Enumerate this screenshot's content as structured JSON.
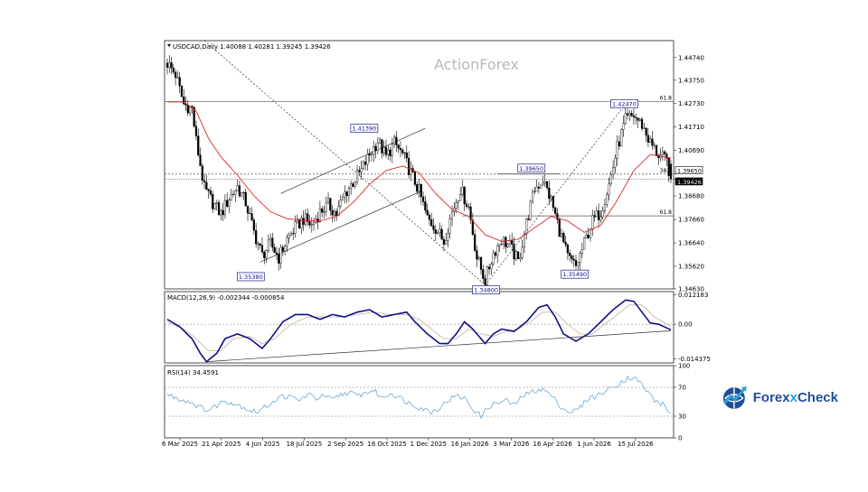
{
  "chart_data": [
    {
      "type": "candlestick",
      "panel": "price",
      "header": "USDCAD,Daily  1.40088 1.40281 1.39245 1.39426",
      "symbol": "USDCAD",
      "timeframe": "Daily",
      "ohlc_last": {
        "open": 1.40088,
        "high": 1.40281,
        "low": 1.39245,
        "close": 1.39426
      },
      "watermark": "ActionForex",
      "ylim": [
        1.3463,
        1.4548
      ],
      "yticks": [
        1.4474,
        1.4375,
        1.4273,
        1.4171,
        1.4069,
        1.3965,
        1.3942,
        1.3869,
        1.3766,
        1.3664,
        1.3562,
        1.3463
      ],
      "ytick_labels": [
        "1.44740",
        "1.43750",
        "1.42730",
        "1.41710",
        "1.40690",
        "1.39650",
        "1.39426",
        "1.38680",
        "1.37660",
        "1.36640",
        "1.35620",
        "1.34630"
      ],
      "xticks": [
        "6 Mar 2025",
        "21 Apr 2025",
        "4 Jun 2025",
        "18 Jul 2025",
        "2 Sep 2025",
        "16 Oct 2025",
        "1 Dec 2025",
        "16 Jan 2026",
        "3 Mar 2026",
        "16 Apr 2026",
        "1 Jun 2026",
        "15 Jul 2026"
      ],
      "close_path": [
        [
          0,
          1.445
        ],
        [
          4,
          1.44
        ],
        [
          8,
          1.427
        ],
        [
          12,
          1.425
        ],
        [
          14,
          1.411
        ],
        [
          18,
          1.39
        ],
        [
          22,
          1.384
        ],
        [
          26,
          1.379
        ],
        [
          30,
          1.386
        ],
        [
          34,
          1.391
        ],
        [
          38,
          1.384
        ],
        [
          42,
          1.371
        ],
        [
          46,
          1.361
        ],
        [
          50,
          1.366
        ],
        [
          54,
          1.36
        ],
        [
          58,
          1.368
        ],
        [
          62,
          1.373
        ],
        [
          66,
          1.377
        ],
        [
          70,
          1.374
        ],
        [
          74,
          1.38
        ],
        [
          78,
          1.383
        ],
        [
          82,
          1.379
        ],
        [
          86,
          1.388
        ],
        [
          90,
          1.393
        ],
        [
          94,
          1.398
        ],
        [
          98,
          1.405
        ],
        [
          102,
          1.411
        ],
        [
          106,
          1.404
        ],
        [
          110,
          1.41
        ],
        [
          114,
          1.405
        ],
        [
          118,
          1.397
        ],
        [
          122,
          1.389
        ],
        [
          126,
          1.377
        ],
        [
          130,
          1.373
        ],
        [
          134,
          1.367
        ],
        [
          138,
          1.38
        ],
        [
          142,
          1.39
        ],
        [
          146,
          1.382
        ],
        [
          150,
          1.36
        ],
        [
          154,
          1.35
        ],
        [
          158,
          1.362
        ],
        [
          162,
          1.368
        ],
        [
          166,
          1.365
        ],
        [
          170,
          1.358
        ],
        [
          174,
          1.375
        ],
        [
          178,
          1.39
        ],
        [
          182,
          1.394
        ],
        [
          186,
          1.385
        ],
        [
          190,
          1.372
        ],
        [
          194,
          1.36
        ],
        [
          198,
          1.356
        ],
        [
          202,
          1.366
        ],
        [
          206,
          1.376
        ],
        [
          210,
          1.38
        ],
        [
          214,
          1.392
        ],
        [
          218,
          1.408
        ],
        [
          222,
          1.42
        ],
        [
          226,
          1.422
        ],
        [
          230,
          1.418
        ],
        [
          234,
          1.41
        ],
        [
          238,
          1.405
        ],
        [
          242,
          1.402
        ],
        [
          244,
          1.3943
        ]
      ],
      "sma_path": [
        [
          0,
          1.428
        ],
        [
          8,
          1.428
        ],
        [
          14,
          1.424
        ],
        [
          20,
          1.412
        ],
        [
          26,
          1.404
        ],
        [
          34,
          1.396
        ],
        [
          42,
          1.387
        ],
        [
          50,
          1.38
        ],
        [
          58,
          1.377
        ],
        [
          66,
          1.376
        ],
        [
          74,
          1.376
        ],
        [
          82,
          1.378
        ],
        [
          90,
          1.384
        ],
        [
          98,
          1.392
        ],
        [
          106,
          1.398
        ],
        [
          114,
          1.4
        ],
        [
          122,
          1.397
        ],
        [
          130,
          1.388
        ],
        [
          138,
          1.381
        ],
        [
          146,
          1.378
        ],
        [
          154,
          1.37
        ],
        [
          162,
          1.367
        ],
        [
          170,
          1.368
        ],
        [
          178,
          1.373
        ],
        [
          186,
          1.378
        ],
        [
          194,
          1.376
        ],
        [
          202,
          1.371
        ],
        [
          210,
          1.374
        ],
        [
          218,
          1.385
        ],
        [
          226,
          1.398
        ],
        [
          234,
          1.405
        ],
        [
          244,
          1.4035
        ]
      ],
      "annotations": [
        {
          "label": "1.35380",
          "x": 40,
          "y": 1.3538
        },
        {
          "label": "1.41390",
          "x": 95,
          "y": 1.4139
        },
        {
          "label": "1.34800",
          "x": 154,
          "y": 1.348
        },
        {
          "label": "1.39650",
          "x": 176,
          "y": 1.3965
        },
        {
          "label": "1.35490",
          "x": 197,
          "y": 1.3549
        },
        {
          "label": "1.42470",
          "x": 221,
          "y": 1.4247
        }
      ],
      "fib_levels": [
        {
          "label": "61.8",
          "value": 1.4282
        },
        {
          "label": "38.2",
          "value": 1.3965
        },
        {
          "label": "61.8",
          "value": 1.3782
        }
      ]
    },
    {
      "type": "line",
      "panel": "macd",
      "header": "MACD(12,26,9) -0.002344 -0.000854",
      "ylim": [
        -0.016,
        0.0135
      ],
      "yticks": [
        0.012183,
        0.0,
        -0.014375
      ],
      "ytick_labels": [
        "0.012183",
        "0.00",
        "-0.014375"
      ],
      "series": [
        {
          "values_path": [
            [
              0,
              0.002
            ],
            [
              6,
              -0.001
            ],
            [
              12,
              -0.006
            ],
            [
              16,
              -0.012
            ],
            [
              19,
              -0.0155
            ],
            [
              24,
              -0.012
            ],
            [
              28,
              -0.006
            ],
            [
              34,
              -0.004
            ],
            [
              40,
              -0.006
            ],
            [
              46,
              -0.01
            ],
            [
              50,
              -0.006
            ],
            [
              56,
              0.001
            ],
            [
              62,
              0.004
            ],
            [
              68,
              0.004
            ],
            [
              74,
              0.002
            ],
            [
              80,
              0.004
            ],
            [
              86,
              0.003
            ],
            [
              92,
              0.005
            ],
            [
              98,
              0.006
            ],
            [
              104,
              0.003
            ],
            [
              110,
              0.004
            ],
            [
              116,
              0.005
            ],
            [
              120,
              0.001
            ],
            [
              126,
              -0.004
            ],
            [
              132,
              -0.008
            ],
            [
              136,
              -0.008
            ],
            [
              140,
              -0.004
            ],
            [
              144,
              0.001
            ],
            [
              148,
              -0.002
            ],
            [
              154,
              -0.008
            ],
            [
              158,
              -0.004
            ],
            [
              162,
              -0.002
            ],
            [
              168,
              -0.003
            ],
            [
              174,
              0.001
            ],
            [
              180,
              0.007
            ],
            [
              184,
              0.008
            ],
            [
              188,
              0.003
            ],
            [
              192,
              -0.004
            ],
            [
              198,
              -0.007
            ],
            [
              204,
              -0.004
            ],
            [
              210,
              0.001
            ],
            [
              216,
              0.006
            ],
            [
              222,
              0.01
            ],
            [
              226,
              0.0095
            ],
            [
              230,
              0.005
            ],
            [
              234,
              0.0005
            ],
            [
              238,
              0.0
            ],
            [
              244,
              -0.0023
            ]
          ]
        },
        {
          "signal_path": [
            [
              0,
              0.001
            ],
            [
              8,
              -0.002
            ],
            [
              14,
              -0.006
            ],
            [
              20,
              -0.011
            ],
            [
              26,
              -0.011
            ],
            [
              32,
              -0.006
            ],
            [
              40,
              -0.005
            ],
            [
              46,
              -0.008
            ],
            [
              52,
              -0.006
            ],
            [
              60,
              0.0
            ],
            [
              68,
              0.003
            ],
            [
              76,
              0.003
            ],
            [
              84,
              0.003
            ],
            [
              92,
              0.004
            ],
            [
              100,
              0.005
            ],
            [
              108,
              0.004
            ],
            [
              116,
              0.004
            ],
            [
              122,
              0.002
            ],
            [
              128,
              -0.002
            ],
            [
              134,
              -0.006
            ],
            [
              140,
              -0.006
            ],
            [
              146,
              -0.002
            ],
            [
              152,
              -0.004
            ],
            [
              158,
              -0.005
            ],
            [
              164,
              -0.003
            ],
            [
              170,
              -0.002
            ],
            [
              176,
              0.001
            ],
            [
              182,
              0.005
            ],
            [
              188,
              0.005
            ],
            [
              194,
              0.0
            ],
            [
              200,
              -0.004
            ],
            [
              206,
              -0.004
            ],
            [
              212,
              0.0
            ],
            [
              218,
              0.004
            ],
            [
              224,
              0.008
            ],
            [
              230,
              0.008
            ],
            [
              236,
              0.003
            ],
            [
              244,
              -0.0008
            ]
          ]
        }
      ],
      "trendline": [
        [
          19,
          -0.0155
        ],
        [
          244,
          -0.0027
        ]
      ]
    },
    {
      "type": "line",
      "panel": "rsi",
      "header": "RSI(14) 34.4591",
      "ylim": [
        0,
        100
      ],
      "yticks": [
        100,
        70,
        30,
        0
      ],
      "ytick_labels": [
        "100",
        "70",
        "30",
        "0"
      ],
      "levels": [
        70,
        30
      ],
      "values_path": [
        [
          0,
          60
        ],
        [
          4,
          56
        ],
        [
          8,
          52
        ],
        [
          12,
          49
        ],
        [
          16,
          42
        ],
        [
          20,
          38
        ],
        [
          24,
          45
        ],
        [
          28,
          52
        ],
        [
          32,
          48
        ],
        [
          36,
          44
        ],
        [
          40,
          38
        ],
        [
          44,
          36
        ],
        [
          48,
          44
        ],
        [
          52,
          52
        ],
        [
          56,
          58
        ],
        [
          60,
          56
        ],
        [
          64,
          52
        ],
        [
          68,
          60
        ],
        [
          72,
          55
        ],
        [
          76,
          58
        ],
        [
          80,
          52
        ],
        [
          84,
          60
        ],
        [
          88,
          63
        ],
        [
          92,
          58
        ],
        [
          96,
          62
        ],
        [
          100,
          66
        ],
        [
          104,
          55
        ],
        [
          108,
          62
        ],
        [
          112,
          57
        ],
        [
          116,
          50
        ],
        [
          120,
          45
        ],
        [
          124,
          40
        ],
        [
          128,
          36
        ],
        [
          132,
          42
        ],
        [
          136,
          52
        ],
        [
          140,
          58
        ],
        [
          144,
          55
        ],
        [
          148,
          40
        ],
        [
          152,
          30
        ],
        [
          156,
          44
        ],
        [
          160,
          48
        ],
        [
          164,
          52
        ],
        [
          168,
          45
        ],
        [
          172,
          58
        ],
        [
          176,
          62
        ],
        [
          180,
          68
        ],
        [
          184,
          64
        ],
        [
          188,
          52
        ],
        [
          192,
          40
        ],
        [
          196,
          35
        ],
        [
          200,
          42
        ],
        [
          204,
          55
        ],
        [
          208,
          58
        ],
        [
          212,
          64
        ],
        [
          216,
          70
        ],
        [
          220,
          78
        ],
        [
          224,
          84
        ],
        [
          228,
          80
        ],
        [
          232,
          66
        ],
        [
          236,
          52
        ],
        [
          240,
          46
        ],
        [
          244,
          34.46
        ]
      ],
      "last_value": 34.4591
    }
  ],
  "branding": {
    "logo_text_1": "Forex",
    "logo_text_x": "x",
    "logo_text_2": "Check"
  },
  "colors": {
    "candle": "#000000",
    "sma": "#e0282b",
    "macd": "#10108a",
    "signal": "#c9b9a4",
    "rsi": "#6ca7d8",
    "grid_dash": "#333333",
    "annotation_border": "#1a1a8c"
  }
}
